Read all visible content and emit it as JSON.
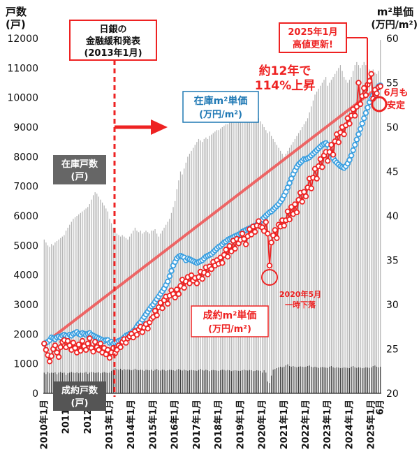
{
  "chart_data": {
    "type": "bar+line",
    "y_left": {
      "label_line1": "戸数",
      "label_line2": "(戸)",
      "min": 0,
      "max": 12000,
      "ticks": [
        "0",
        "1000",
        "2000",
        "3000",
        "4000",
        "5000",
        "6000",
        "7000",
        "8000",
        "9000",
        "10000",
        "11000",
        "12000"
      ]
    },
    "y_right": {
      "label_line1": "m²単価",
      "label_line2": "(万円/m²)",
      "min": 20,
      "max": 60,
      "ticks": [
        "20",
        "25",
        "30",
        "35",
        "40",
        "45",
        "50",
        "55",
        "60"
      ]
    },
    "x_labels": [
      "2010年1月",
      "2011年",
      "2012年",
      "2013年1月",
      "2014年1月",
      "2015年1月",
      "2016年1月",
      "2017年1月",
      "2018年1月",
      "2019年1月",
      "2020年1月",
      "2021年1月",
      "2022年1月",
      "2023年1月",
      "2024年1月",
      "2025年1月",
      "6月"
    ],
    "inventory_units_by_year": [
      {
        "year": 2010,
        "values": [
          5200,
          5100,
          5000,
          4950,
          5050,
          5000,
          5100,
          5150,
          5200,
          5250,
          5300,
          5350
        ]
      },
      {
        "year": 2011,
        "values": [
          5500,
          5600,
          5700,
          5800,
          5900,
          5950,
          6000,
          6050,
          6100,
          6150,
          6200,
          6250
        ]
      },
      {
        "year": 2012,
        "values": [
          6300,
          6400,
          6550,
          6700,
          6800,
          6750,
          6650,
          6550,
          6450,
          6350,
          6250,
          6150
        ]
      },
      {
        "year": 2013,
        "values": [
          5900,
          5750,
          5600,
          5450,
          5400,
          5350,
          5300,
          5350,
          5300,
          5250,
          5200,
          5300
        ]
      },
      {
        "year": 2014,
        "values": [
          5400,
          5500,
          5600,
          5500,
          5450,
          5500,
          5400,
          5450,
          5500,
          5450,
          5400,
          5500
        ]
      },
      {
        "year": 2015,
        "values": [
          5500,
          5550,
          5400,
          5300,
          5400,
          5500,
          5600,
          5700,
          5800,
          5900,
          6100,
          6300
        ]
      },
      {
        "year": 2016,
        "values": [
          6500,
          6900,
          7200,
          7500,
          7400,
          7600,
          7800,
          8000,
          8100,
          8200,
          8300,
          8400
        ]
      },
      {
        "year": 2017,
        "values": [
          8500,
          8600,
          8550,
          8500,
          8600,
          8650,
          8600,
          8700,
          8750,
          8800,
          8850,
          8900
        ]
      },
      {
        "year": 2018,
        "values": [
          8900,
          8950,
          9000,
          9050,
          9100,
          9100,
          9150,
          9200,
          9250,
          9300,
          9400,
          9500
        ]
      },
      {
        "year": 2019,
        "values": [
          9600,
          9700,
          9800,
          9900,
          10000,
          9950,
          9900,
          9800,
          9600,
          9400,
          9300,
          9200
        ]
      },
      {
        "year": 2020,
        "values": [
          9100,
          9000,
          8900,
          8800,
          8850,
          8700,
          8600,
          8500,
          8400,
          8300,
          8200,
          8100
        ]
      },
      {
        "year": 2021,
        "values": [
          8000,
          8100,
          8200,
          8300,
          8400,
          8500,
          8600,
          8700,
          8800,
          8900,
          9000,
          9100
        ]
      },
      {
        "year": 2022,
        "values": [
          9200,
          9300,
          9500,
          9700,
          9900,
          10100,
          10200,
          10300,
          10400,
          10500,
          10600,
          10700
        ]
      },
      {
        "year": 2023,
        "values": [
          10400,
          10500,
          10600,
          10700,
          10800,
          10900,
          11000,
          11100,
          10900,
          10700,
          10600,
          10500
        ]
      },
      {
        "year": 2024,
        "values": [
          10600,
          10700,
          10900,
          11100,
          11200,
          11100,
          11000,
          11100,
          11200,
          11100,
          11000,
          10950
        ]
      },
      {
        "year": 2025,
        "values": [
          10900,
          10950,
          10850,
          10800,
          10900,
          11950
        ]
      }
    ],
    "contract_units_by_year": [
      {
        "year": 2010,
        "values": [
          700,
          650,
          720,
          680,
          700,
          690,
          710,
          650,
          700,
          720,
          690,
          700
        ]
      },
      {
        "year": 2011,
        "values": [
          620,
          680,
          700,
          720,
          700,
          690,
          710,
          680,
          700,
          690,
          700,
          720
        ]
      },
      {
        "year": 2012,
        "values": [
          660,
          700,
          720,
          710,
          690,
          700,
          710,
          680,
          700,
          720,
          700,
          690
        ]
      },
      {
        "year": 2013,
        "values": [
          700,
          760,
          800,
          850,
          820,
          800,
          830,
          780,
          820,
          800,
          810,
          800
        ]
      },
      {
        "year": 2014,
        "values": [
          780,
          800,
          830,
          800,
          780,
          800,
          790,
          760,
          800,
          790,
          780,
          800
        ]
      },
      {
        "year": 2015,
        "values": [
          760,
          800,
          820,
          780,
          770,
          800,
          790,
          760,
          780,
          800,
          790,
          780
        ]
      },
      {
        "year": 2016,
        "values": [
          760,
          800,
          820,
          790,
          770,
          800,
          780,
          760,
          780,
          790,
          780,
          770
        ]
      },
      {
        "year": 2017,
        "values": [
          760,
          790,
          820,
          790,
          770,
          800,
          780,
          750,
          780,
          790,
          780,
          770
        ]
      },
      {
        "year": 2018,
        "values": [
          760,
          780,
          800,
          790,
          770,
          790,
          780,
          750,
          770,
          780,
          770,
          760
        ]
      },
      {
        "year": 2019,
        "values": [
          760,
          780,
          800,
          780,
          770,
          790,
          780,
          750,
          760,
          780,
          770,
          760
        ]
      },
      {
        "year": 2020,
        "values": [
          700,
          780,
          700,
          400,
          350,
          600,
          800,
          820,
          850,
          880,
          900,
          880
        ]
      },
      {
        "year": 2021,
        "values": [
          900,
          950,
          980,
          920,
          900,
          920,
          900,
          880,
          900,
          910,
          900,
          890
        ]
      },
      {
        "year": 2022,
        "values": [
          900,
          920,
          940,
          900,
          880,
          900,
          880,
          860,
          880,
          890,
          880,
          870
        ]
      },
      {
        "year": 2023,
        "values": [
          860,
          900,
          920,
          880,
          860,
          880,
          870,
          850,
          860,
          880,
          870,
          860
        ]
      },
      {
        "year": 2024,
        "values": [
          850,
          900,
          920,
          880,
          860,
          880,
          870,
          850,
          860,
          880,
          870,
          860
        ]
      },
      {
        "year": 2025,
        "values": [
          880,
          920,
          940,
          900,
          880,
          900
        ]
      }
    ],
    "inventory_price_by_year": [
      {
        "year": 2010,
        "values": [
          25.6,
          25.7,
          25.8,
          26.0,
          26.3,
          26.2,
          26.1,
          26.3,
          26.4,
          26.3,
          26.5,
          26.6
        ]
      },
      {
        "year": 2011,
        "values": [
          26.5,
          26.4,
          26.6,
          26.5,
          26.7,
          26.8,
          26.9,
          26.7,
          26.6,
          26.8,
          26.7,
          26.6
        ]
      },
      {
        "year": 2012,
        "values": [
          26.7,
          26.8,
          26.6,
          26.5,
          26.4,
          26.3,
          26.2,
          26.1,
          26.0,
          25.9,
          26.0,
          26.0
        ]
      },
      {
        "year": 2013,
        "values": [
          25.7,
          25.8,
          25.6,
          25.7,
          25.8,
          25.9,
          26.0,
          26.1,
          26.3,
          26.5,
          26.6,
          26.7
        ]
      },
      {
        "year": 2014,
        "values": [
          26.8,
          27.0,
          27.2,
          27.5,
          27.8,
          28.0,
          28.3,
          28.6,
          28.9,
          29.2,
          29.5,
          29.8
        ]
      },
      {
        "year": 2015,
        "values": [
          30.0,
          30.3,
          30.6,
          30.9,
          31.2,
          31.5,
          31.8,
          32.2,
          32.6,
          33.2,
          33.8,
          34.4
        ]
      },
      {
        "year": 2016,
        "values": [
          34.8,
          35.2,
          35.4,
          35.5,
          35.4,
          35.3,
          35.0,
          35.2,
          35.1,
          35.0,
          34.9,
          34.8
        ]
      },
      {
        "year": 2017,
        "values": [
          34.7,
          34.8,
          34.9,
          35.0,
          35.2,
          35.4,
          35.5,
          35.6,
          35.7,
          35.9,
          36.1,
          36.3
        ]
      },
      {
        "year": 2018,
        "values": [
          36.5,
          36.6,
          36.8,
          37.0,
          37.1,
          37.3,
          37.4,
          37.5,
          37.6,
          37.7,
          37.8,
          37.9
        ]
      },
      {
        "year": 2019,
        "values": [
          38.0,
          38.2,
          38.3,
          38.4,
          38.5,
          38.6,
          38.7,
          38.8,
          38.9,
          39.0,
          39.2,
          39.4
        ]
      },
      {
        "year": 2020,
        "values": [
          39.6,
          39.8,
          40.0,
          40.2,
          40.4,
          40.5,
          40.7,
          40.9,
          41.1,
          41.3,
          41.6,
          41.9
        ]
      },
      {
        "year": 2021,
        "values": [
          42.3,
          42.7,
          43.2,
          43.7,
          44.2,
          44.7,
          45.1,
          45.5,
          45.8,
          46.0,
          46.2,
          46.4
        ]
      },
      {
        "year": 2022,
        "values": [
          46.4,
          46.5,
          46.6,
          46.8,
          47.0,
          47.2,
          47.4,
          47.6,
          47.8,
          48.0,
          48.1,
          48.2
        ]
      },
      {
        "year": 2023,
        "values": [
          48.0,
          47.6,
          47.0,
          46.5,
          46.2,
          46.0,
          45.8,
          45.6,
          45.5,
          45.4,
          45.6,
          45.9
        ]
      },
      {
        "year": 2024,
        "values": [
          46.3,
          46.8,
          47.4,
          48.0,
          48.6,
          49.2,
          49.8,
          50.4,
          51.0,
          51.6,
          52.2,
          52.8
        ]
      },
      {
        "year": 2025,
        "values": [
          53.2,
          53.6,
          54.0,
          54.3,
          54.6,
          54.7
        ]
      }
    ],
    "contract_price_by_year": [
      {
        "year": 2010,
        "values": [
          25.6,
          24.9,
          24.3,
          23.6,
          24.2,
          25.0,
          25.4,
          24.6,
          24.1,
          25.2,
          25.8,
          26.0
        ]
      },
      {
        "year": 2011,
        "values": [
          25.2,
          25.9,
          25.4,
          24.9,
          25.7,
          25.1,
          24.6,
          25.5,
          24.8,
          25.9,
          25.3,
          24.9
        ]
      },
      {
        "year": 2012,
        "values": [
          25.6,
          26.2,
          25.1,
          24.7,
          25.8,
          25.2,
          24.9,
          25.6,
          24.6,
          25.1,
          24.4,
          24.9
        ]
      },
      {
        "year": 2013,
        "values": [
          24.0,
          24.6,
          25.1,
          24.5,
          24.9,
          25.4,
          25.2,
          25.8,
          26.1,
          25.7,
          26.2,
          26.4
        ]
      },
      {
        "year": 2014,
        "values": [
          26.7,
          26.3,
          27.0,
          26.6,
          27.2,
          27.5,
          26.9,
          27.4,
          27.8,
          27.3,
          28.0,
          28.4
        ]
      },
      {
        "year": 2015,
        "values": [
          28.6,
          29.3,
          28.8,
          29.7,
          30.2,
          29.6,
          30.5,
          30.9,
          30.1,
          31.0,
          31.6,
          31.2
        ]
      },
      {
        "year": 2016,
        "values": [
          30.8,
          31.7,
          31.2,
          32.1,
          32.8,
          31.9,
          32.6,
          33.1,
          32.4,
          33.3,
          32.7,
          33.0
        ]
      },
      {
        "year": 2017,
        "values": [
          32.4,
          33.1,
          33.7,
          32.9,
          33.6,
          34.2,
          33.4,
          34.3,
          34.0,
          34.8,
          34.4,
          35.0
        ]
      },
      {
        "year": 2018,
        "values": [
          34.6,
          35.3,
          34.7,
          35.6,
          36.2,
          35.4,
          36.6,
          36.0,
          37.2,
          36.3,
          37.4,
          36.9
        ]
      },
      {
        "year": 2019,
        "values": [
          37.3,
          38.0,
          37.4,
          36.8,
          37.7,
          38.5,
          37.9,
          38.8,
          38.2,
          38.9,
          39.4,
          38.8
        ]
      },
      {
        "year": 2020,
        "values": [
          38.7,
          38.3,
          39.3,
          38.0,
          34.4,
          37.0,
          37.8,
          38.4,
          37.5,
          39.0,
          38.8,
          39.5
        ]
      },
      {
        "year": 2021,
        "values": [
          38.9,
          39.5,
          40.5,
          39.6,
          41.0,
          40.2,
          41.3,
          40.4,
          41.8,
          42.6,
          41.6,
          42.7
        ]
      },
      {
        "year": 2022,
        "values": [
          42.2,
          43.2,
          44.2,
          43.1,
          44.3,
          45.3,
          44.2,
          45.6,
          46.4,
          45.5,
          46.8,
          47.2
        ]
      },
      {
        "year": 2023,
        "values": [
          46.2,
          47.2,
          48.0,
          46.9,
          48.4,
          49.2,
          48.3,
          49.4,
          50.0,
          49.2,
          50.2,
          51.0
        ]
      },
      {
        "year": 2024,
        "values": [
          50.4,
          51.3,
          52.0,
          51.3,
          52.3,
          55.0,
          52.6,
          53.5,
          54.4,
          53.6,
          54.8,
          55.2
        ]
      },
      {
        "year": 2025,
        "values": [
          56.0,
          53.2,
          54.2,
          53.8,
          54.5,
          54.6
        ]
      }
    ],
    "trend_line": {
      "start": {
        "year": 2010,
        "month": 1,
        "value": 25.6
      },
      "end": {
        "year": 2025,
        "month": 6,
        "value": 54.7
      }
    },
    "series_labels": {
      "inventory_units": [
        "在庫戸数",
        "(戸)"
      ],
      "contract_units": [
        "成約戸数",
        "(戸)"
      ],
      "inventory_price": [
        "在庫m²単価",
        "(万円/m²)"
      ],
      "contract_price": [
        "成約m²単価",
        "(万円/m²)"
      ]
    },
    "annotations": {
      "boj": [
        "日銀の",
        "金融緩和発表",
        "(2013年1月)"
      ],
      "rise": [
        "約12年で",
        "114%上昇"
      ],
      "high": [
        "2025年1月",
        "高値更新!"
      ],
      "stable": [
        "6月も",
        "安定"
      ],
      "dip": [
        "2020年5月",
        "一時下落"
      ]
    },
    "colors": {
      "inventory_bar": "#b0b0b0",
      "contract_bar": "#3a3a3a",
      "inventory_price": "#3a9fe0",
      "contract_price": "#ee2222",
      "label_gray": "#666666"
    }
  }
}
